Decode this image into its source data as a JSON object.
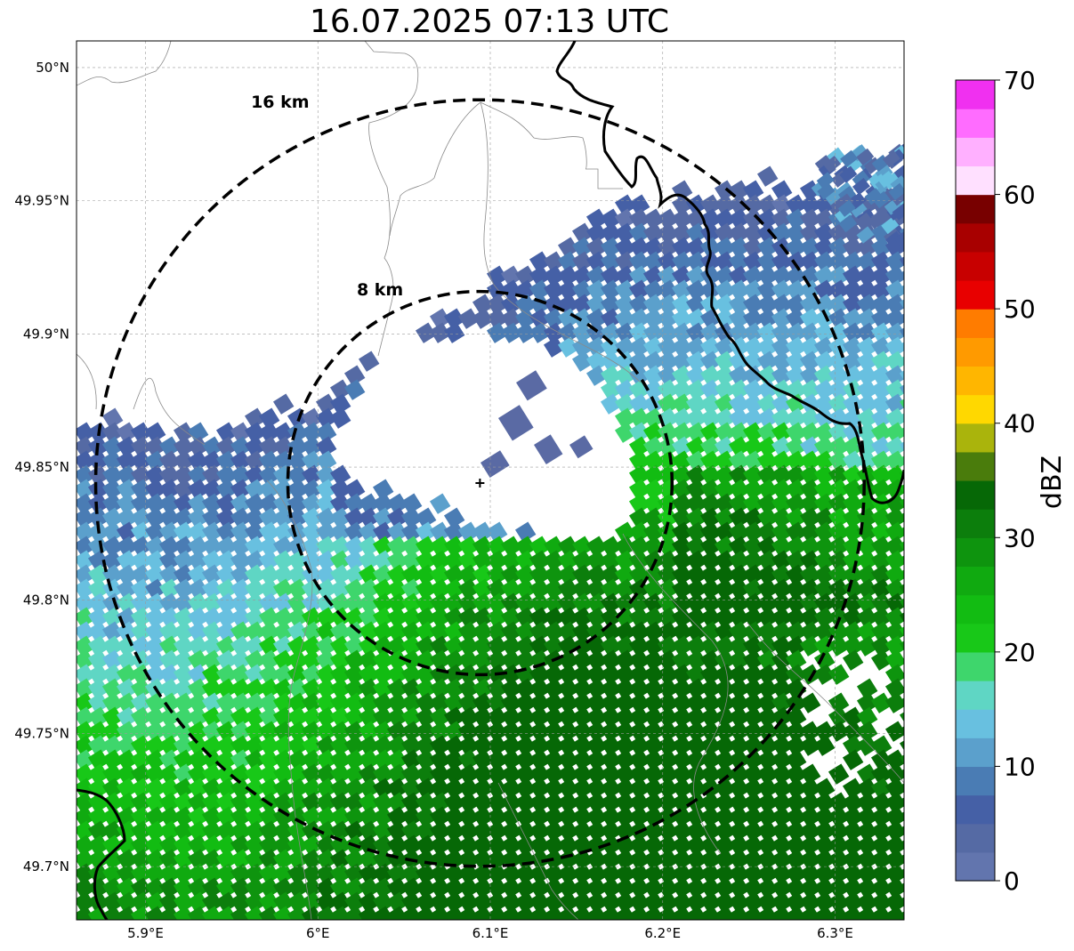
{
  "title": "16.07.2025 07:13 UTC",
  "map": {
    "lon_range": [
      5.86,
      6.34
    ],
    "lat_range": [
      49.68,
      50.01
    ],
    "lon_ticks": [
      {
        "value": 5.9,
        "label": "5.9°E"
      },
      {
        "value": 6.0,
        "label": "6°E"
      },
      {
        "value": 6.1,
        "label": "6.1°E"
      },
      {
        "value": 6.2,
        "label": "6.2°E"
      },
      {
        "value": 6.3,
        "label": "6.3°E"
      }
    ],
    "lat_ticks": [
      {
        "value": 50.0,
        "label": "50°N"
      },
      {
        "value": 49.95,
        "label": "49.95°N"
      },
      {
        "value": 49.9,
        "label": "49.9°N"
      },
      {
        "value": 49.85,
        "label": "49.85°N"
      },
      {
        "value": 49.8,
        "label": "49.8°N"
      },
      {
        "value": 49.75,
        "label": "49.75°N"
      },
      {
        "value": 49.7,
        "label": "49.7°N"
      }
    ],
    "grid": true,
    "radar_site": {
      "lon": 6.094,
      "lat": 49.844
    },
    "range_rings": [
      {
        "label": "8 km",
        "km": 8
      },
      {
        "label": "16 km",
        "km": 16
      }
    ]
  },
  "colorbar": {
    "label": "dBZ",
    "min": 0,
    "max": 70,
    "tick_labels": [
      "0",
      "10",
      "20",
      "30",
      "40",
      "50",
      "60",
      "70"
    ],
    "colors": [
      "#6275ae",
      "#556aa4",
      "#4560a6",
      "#4a7cb4",
      "#5ba0cc",
      "#68c0e0",
      "#5fd6c4",
      "#3ed66c",
      "#18c818",
      "#12bc12",
      "#10aa10",
      "#0e940e",
      "#0c7e0c",
      "#066806",
      "#4a7c0c",
      "#aab40c",
      "#ffd800",
      "#ffb600",
      "#ff9a00",
      "#ff7c00",
      "#e80000",
      "#c80000",
      "#a80000",
      "#780000",
      "#ffe0ff",
      "#ffb0ff",
      "#ff6cff",
      "#f030f0"
    ]
  }
}
